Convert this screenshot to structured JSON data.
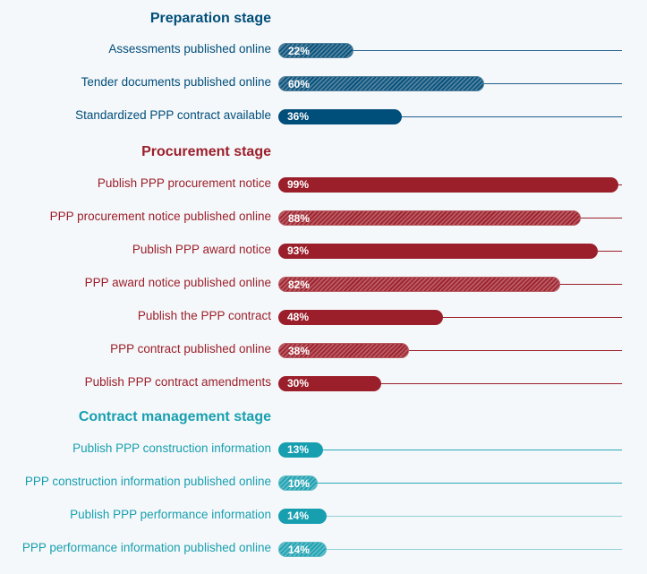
{
  "chart_data": {
    "type": "bar",
    "orientation": "horizontal",
    "unit": "%",
    "xlim": [
      0,
      100
    ],
    "stages": [
      {
        "title": "Preparation stage",
        "color": "#004e7a",
        "hatch_color": "#4f7f9c",
        "line_color": "#1f5f8c",
        "rows": [
          {
            "label": "Assessments published online",
            "value": 22,
            "value_label": "22%",
            "hatched": true
          },
          {
            "label": "Tender documents published online",
            "value": 60,
            "value_label": "60%",
            "hatched": true
          },
          {
            "label": "Standardized PPP contract available",
            "value": 36,
            "value_label": "36%",
            "hatched": false
          }
        ]
      },
      {
        "title": "Procurement stage",
        "color": "#9b1f2b",
        "hatch_color": "#b85a62",
        "line_color": "#9b1f2b",
        "rows": [
          {
            "label": "Publish PPP procurement notice",
            "value": 99,
            "value_label": "99%",
            "hatched": false
          },
          {
            "label": "PPP procurement notice published online",
            "value": 88,
            "value_label": "88%",
            "hatched": true
          },
          {
            "label": "Publish PPP award notice",
            "value": 93,
            "value_label": "93%",
            "hatched": false
          },
          {
            "label": "PPP award notice published online",
            "value": 82,
            "value_label": "82%",
            "hatched": true
          },
          {
            "label": "Publish the PPP contract",
            "value": 48,
            "value_label": "48%",
            "hatched": false
          },
          {
            "label": "PPP contract published online",
            "value": 38,
            "value_label": "38%",
            "hatched": true
          },
          {
            "label": "Publish PPP contract amendments",
            "value": 30,
            "value_label": "30%",
            "hatched": false
          }
        ]
      },
      {
        "title": "Contract management stage",
        "color": "#179fb0",
        "hatch_color": "#5cbac6",
        "line_color": "#2aaab9",
        "rows": [
          {
            "label": "Publish PPP construction information",
            "value": 13,
            "value_label": "13%",
            "hatched": false
          },
          {
            "label": "PPP construction information published online",
            "value": 10,
            "value_label": "10%",
            "hatched": true
          },
          {
            "label": "Publish PPP performance information",
            "value": 14,
            "value_label": "14%",
            "hatched": false
          },
          {
            "label": "PPP performance information published online",
            "value": 14,
            "value_label": "14%",
            "hatched": true
          }
        ]
      }
    ]
  }
}
